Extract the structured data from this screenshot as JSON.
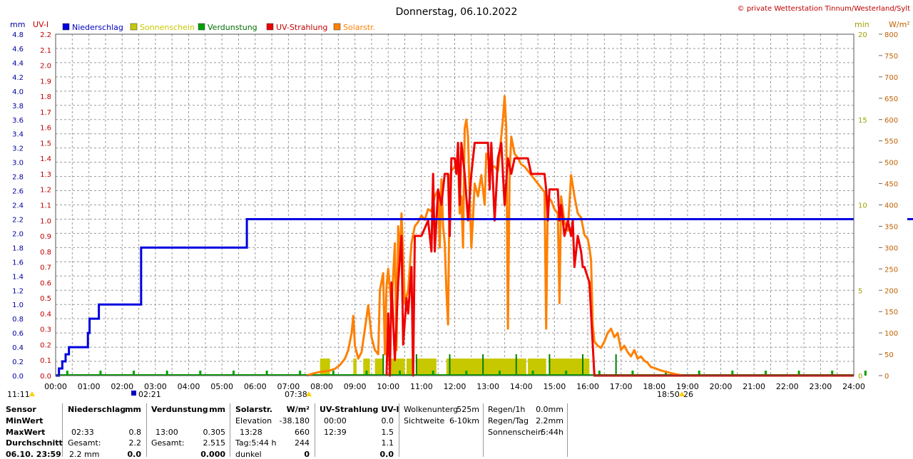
{
  "header": {
    "title": "Donnerstag, 06.10.2022",
    "copyright": "© private Wetterstation Tinnum/Westerland/Sylt"
  },
  "colors": {
    "precip": "#0000e0",
    "sunshine": "#c8c800",
    "sunshine_bar": "#c8c800",
    "evap": "#00a000",
    "uv": "#ee0000",
    "solar": "#ff8000",
    "grid": "#9a9a9a"
  },
  "chart_data": {
    "type": "line",
    "title": "Donnerstag, 06.10.2022",
    "x_range": [
      "00:00",
      "24:00"
    ],
    "x_ticks": [
      "00:00",
      "01:00",
      "02:00",
      "03:00",
      "04:00",
      "05:00",
      "06:00",
      "07:00",
      "08:00",
      "09:00",
      "10:00",
      "11:00",
      "12:00",
      "13:00",
      "14:00",
      "15:00",
      "16:00",
      "17:00",
      "18:00",
      "19:00",
      "20:00",
      "21:00",
      "22:00",
      "23:00",
      "24:00"
    ],
    "grid": true,
    "legend_position": "top",
    "axes": {
      "mm": {
        "label": "mm",
        "range": [
          0,
          4.8
        ],
        "ticks": [
          "0.0",
          "0.2",
          "0.4",
          "0.6",
          "0.8",
          "1.0",
          "1.2",
          "1.4",
          "1.6",
          "1.8",
          "2.0",
          "2.2",
          "2.4",
          "2.6",
          "2.8",
          "3.0",
          "3.2",
          "3.4",
          "3.6",
          "3.8",
          "4.0",
          "4.2",
          "4.4",
          "4.6",
          "4.8"
        ]
      },
      "uv": {
        "label": "UV-I",
        "range": [
          0,
          2.2
        ],
        "ticks": [
          "0.0",
          "0.1",
          "0.2",
          "0.3",
          "0.4",
          "0.5",
          "0.6",
          "0.7",
          "0.8",
          "0.9",
          "1.0",
          "1.1",
          "1.2",
          "1.3",
          "1.4",
          "1.5",
          "1.6",
          "1.7",
          "1.8",
          "1.9",
          "2.0",
          "2.1",
          "2.2"
        ]
      },
      "min": {
        "label": "min",
        "range": [
          0,
          20
        ],
        "ticks": [
          "0",
          "5",
          "10",
          "15",
          "20"
        ]
      },
      "wm2": {
        "label": "W/m²",
        "range": [
          0,
          800
        ],
        "ticks": [
          "0",
          "50",
          "100",
          "150",
          "200",
          "250",
          "300",
          "350",
          "400",
          "450",
          "500",
          "550",
          "600",
          "650",
          "700",
          "750",
          "800"
        ]
      }
    },
    "time_markers": [
      {
        "label": "11:11"
      },
      {
        "label": "02:21"
      },
      {
        "label": "07:38"
      },
      {
        "label": "18:50"
      },
      {
        "label": "26"
      }
    ],
    "legend": [
      "Niederschlag",
      "Sonnenschein",
      "Verdunstung",
      "UV-Strahlung",
      "Solarstr."
    ],
    "right_axis_marker_value_mm": 2.2,
    "series": [
      {
        "name": "Niederschlag",
        "unit": "mm",
        "axis": "mm",
        "step": true,
        "points": [
          [
            0,
            0
          ],
          [
            0.1,
            0.1
          ],
          [
            0.2,
            0.2
          ],
          [
            0.3,
            0.3
          ],
          [
            0.4,
            0.4
          ],
          [
            0.95,
            0.4
          ],
          [
            0.97,
            0.6
          ],
          [
            1.02,
            0.8
          ],
          [
            1.25,
            0.8
          ],
          [
            1.3,
            1.0
          ],
          [
            2.55,
            1.0
          ],
          [
            2.57,
            1.8
          ],
          [
            5.7,
            1.8
          ],
          [
            5.75,
            2.2
          ],
          [
            24,
            2.2
          ]
        ]
      },
      {
        "name": "UV-Strahlung",
        "unit": "UV-I",
        "axis": "uv",
        "points": [
          [
            9.95,
            0
          ],
          [
            10.0,
            0.4
          ],
          [
            10.05,
            0
          ],
          [
            10.1,
            0.6
          ],
          [
            10.2,
            0.1
          ],
          [
            10.3,
            0.6
          ],
          [
            10.4,
            0.9
          ],
          [
            10.45,
            0.2
          ],
          [
            10.55,
            0.5
          ],
          [
            10.6,
            0.4
          ],
          [
            10.7,
            0.7
          ],
          [
            10.75,
            0
          ],
          [
            10.8,
            0.9
          ],
          [
            11.0,
            0.9
          ],
          [
            11.2,
            1.0
          ],
          [
            11.3,
            0.8
          ],
          [
            11.35,
            1.3
          ],
          [
            11.4,
            0.8
          ],
          [
            11.5,
            1.2
          ],
          [
            11.6,
            1.1
          ],
          [
            11.7,
            1.3
          ],
          [
            11.8,
            1.3
          ],
          [
            11.85,
            0.9
          ],
          [
            11.9,
            1.4
          ],
          [
            12.0,
            1.4
          ],
          [
            12.05,
            1.3
          ],
          [
            12.1,
            1.5
          ],
          [
            12.15,
            1.1
          ],
          [
            12.2,
            1.5
          ],
          [
            12.3,
            1.3
          ],
          [
            12.4,
            1.0
          ],
          [
            12.5,
            1.3
          ],
          [
            12.6,
            1.5
          ],
          [
            13.0,
            1.5
          ],
          [
            13.05,
            1.2
          ],
          [
            13.1,
            1.5
          ],
          [
            13.2,
            1.0
          ],
          [
            13.3,
            1.4
          ],
          [
            13.4,
            1.5
          ],
          [
            13.5,
            1.1
          ],
          [
            13.6,
            1.4
          ],
          [
            13.7,
            1.3
          ],
          [
            13.8,
            1.4
          ],
          [
            13.9,
            1.4
          ],
          [
            14.2,
            1.4
          ],
          [
            14.3,
            1.3
          ],
          [
            14.7,
            1.3
          ],
          [
            14.75,
            1.2
          ],
          [
            14.8,
            1.0
          ],
          [
            14.85,
            1.2
          ],
          [
            15.1,
            1.2
          ],
          [
            15.15,
            1.0
          ],
          [
            15.2,
            1.1
          ],
          [
            15.3,
            0.9
          ],
          [
            15.4,
            1.0
          ],
          [
            15.5,
            0.9
          ],
          [
            15.55,
            1.0
          ],
          [
            15.6,
            0.7
          ],
          [
            15.7,
            0.9
          ],
          [
            15.8,
            0.8
          ],
          [
            15.85,
            0.7
          ],
          [
            15.9,
            0.7
          ],
          [
            16.05,
            0.6
          ],
          [
            16.2,
            0
          ],
          [
            24,
            0
          ]
        ]
      },
      {
        "name": "Solarstr.",
        "unit": "W/m²",
        "axis": "wm2",
        "points": [
          [
            7.55,
            0
          ],
          [
            7.7,
            4
          ],
          [
            7.9,
            8
          ],
          [
            8.1,
            10
          ],
          [
            8.25,
            12
          ],
          [
            8.4,
            16
          ],
          [
            8.55,
            25
          ],
          [
            8.7,
            40
          ],
          [
            8.8,
            60
          ],
          [
            8.9,
            100
          ],
          [
            8.95,
            140
          ],
          [
            9.0,
            70
          ],
          [
            9.1,
            40
          ],
          [
            9.2,
            55
          ],
          [
            9.3,
            110
          ],
          [
            9.4,
            165
          ],
          [
            9.5,
            90
          ],
          [
            9.6,
            60
          ],
          [
            9.7,
            50
          ],
          [
            9.75,
            200
          ],
          [
            9.85,
            240
          ],
          [
            9.9,
            50
          ],
          [
            9.95,
            210
          ],
          [
            10.0,
            250
          ],
          [
            10.1,
            160
          ],
          [
            10.2,
            310
          ],
          [
            10.25,
            60
          ],
          [
            10.3,
            350
          ],
          [
            10.35,
            270
          ],
          [
            10.4,
            380
          ],
          [
            10.5,
            170
          ],
          [
            10.6,
            200
          ],
          [
            10.7,
            310
          ],
          [
            10.8,
            350
          ],
          [
            10.9,
            360
          ],
          [
            11.0,
            375
          ],
          [
            11.1,
            365
          ],
          [
            11.2,
            390
          ],
          [
            11.3,
            385
          ],
          [
            11.4,
            420
          ],
          [
            11.5,
            435
          ],
          [
            11.55,
            300
          ],
          [
            11.6,
            460
          ],
          [
            11.65,
            350
          ],
          [
            11.7,
            310
          ],
          [
            11.75,
            200
          ],
          [
            11.8,
            120
          ],
          [
            11.85,
            460
          ],
          [
            11.9,
            480
          ],
          [
            12.0,
            490
          ],
          [
            12.1,
            510
          ],
          [
            12.15,
            380
          ],
          [
            12.2,
            420
          ],
          [
            12.25,
            300
          ],
          [
            12.3,
            580
          ],
          [
            12.35,
            600
          ],
          [
            12.4,
            560
          ],
          [
            12.45,
            420
          ],
          [
            12.5,
            300
          ],
          [
            12.55,
            370
          ],
          [
            12.6,
            450
          ],
          [
            12.7,
            420
          ],
          [
            12.8,
            470
          ],
          [
            12.9,
            400
          ],
          [
            12.95,
            520
          ],
          [
            13.0,
            510
          ],
          [
            13.1,
            490
          ],
          [
            13.2,
            490
          ],
          [
            13.3,
            480
          ],
          [
            13.4,
            560
          ],
          [
            13.45,
            600
          ],
          [
            13.5,
            655
          ],
          [
            13.55,
            580
          ],
          [
            13.6,
            110
          ],
          [
            13.65,
            470
          ],
          [
            13.7,
            560
          ],
          [
            13.8,
            520
          ],
          [
            13.9,
            510
          ],
          [
            14.0,
            495
          ],
          [
            14.1,
            490
          ],
          [
            14.2,
            480
          ],
          [
            14.3,
            470
          ],
          [
            14.4,
            460
          ],
          [
            14.5,
            450
          ],
          [
            14.6,
            440
          ],
          [
            14.7,
            430
          ],
          [
            14.75,
            110
          ],
          [
            14.8,
            420
          ],
          [
            14.9,
            410
          ],
          [
            15.0,
            390
          ],
          [
            15.1,
            380
          ],
          [
            15.15,
            170
          ],
          [
            15.2,
            420
          ],
          [
            15.3,
            360
          ],
          [
            15.4,
            340
          ],
          [
            15.5,
            470
          ],
          [
            15.6,
            420
          ],
          [
            15.7,
            380
          ],
          [
            15.8,
            370
          ],
          [
            15.85,
            350
          ],
          [
            15.9,
            330
          ],
          [
            16.0,
            320
          ],
          [
            16.05,
            300
          ],
          [
            16.1,
            270
          ],
          [
            16.15,
            120
          ],
          [
            16.2,
            80
          ],
          [
            16.3,
            70
          ],
          [
            16.4,
            65
          ],
          [
            16.5,
            80
          ],
          [
            16.6,
            100
          ],
          [
            16.7,
            110
          ],
          [
            16.8,
            90
          ],
          [
            16.9,
            100
          ],
          [
            17.0,
            60
          ],
          [
            17.1,
            70
          ],
          [
            17.2,
            55
          ],
          [
            17.3,
            45
          ],
          [
            17.4,
            60
          ],
          [
            17.5,
            40
          ],
          [
            17.6,
            45
          ],
          [
            17.7,
            35
          ],
          [
            17.8,
            30
          ],
          [
            17.9,
            20
          ],
          [
            18.0,
            18
          ],
          [
            18.2,
            12
          ],
          [
            18.4,
            8
          ],
          [
            18.6,
            4
          ],
          [
            18.8,
            1
          ],
          [
            18.85,
            0
          ],
          [
            24,
            0
          ]
        ]
      },
      {
        "name": "Sonnenschein",
        "unit": "min",
        "axis": "min",
        "bars_full_minute": [
          [
            7.95,
            8.25
          ],
          [
            8.95,
            9.05
          ],
          [
            9.25,
            9.45
          ],
          [
            9.6,
            9.85
          ],
          [
            10.05,
            10.5
          ],
          [
            10.55,
            10.75
          ],
          [
            10.85,
            11.45
          ],
          [
            11.75,
            14.15
          ],
          [
            14.2,
            14.75
          ],
          [
            14.85,
            16.05
          ]
        ]
      },
      {
        "name": "Verdunstung",
        "unit": "mm",
        "axis": "mm",
        "points": [
          [
            0,
            0
          ],
          [
            24,
            0
          ]
        ]
      }
    ]
  },
  "footer": {
    "sensor": {
      "label": "Sensor",
      "rows": [
        "MinWert",
        "MaxWert",
        "Durchschnitt",
        "06.10. 23:59"
      ]
    },
    "precip": {
      "header": "Niederschlag",
      "unit": "mm",
      "max_time": "02:33",
      "max_value": "0.8",
      "avg_label": "Gesamt:",
      "avg_value": "2.2",
      "total_label": "2.2 mm",
      "total_value": "0.0"
    },
    "evap": {
      "header": "Verdunstung",
      "unit": "mm",
      "max_time": "13:00",
      "max_value": "0.305",
      "avg_label": "Gesamt:",
      "avg_value": "2.515",
      "total_value": "0.000"
    },
    "solar": {
      "header": "Solarstr.",
      "unit": "W/m²",
      "min_label": "Elevation",
      "min_value": "-38.180",
      "max_time": "13:28",
      "max_value": "660",
      "avg_label": "Tag:5:44 h",
      "avg_value": "244",
      "total_label": "dunkel",
      "total_value": "0"
    },
    "uv": {
      "header": "UV-Strahlung UV-I",
      "min_time": "00:00",
      "min_value": "0.0",
      "max_time": "12:39",
      "max_value": "1.5",
      "avg_value": "1.1",
      "total_value": "0.0"
    },
    "cloud": {
      "r1_label": "Wolkenunterg",
      "r1_value": "525m",
      "r2_label": "Sichtweite",
      "r2_value": "6-10km"
    },
    "rain": {
      "r1_label": "Regen/1h",
      "r1_value": "0.0mm",
      "r2_label": "Regen/Tag",
      "r2_value": "2.2mm",
      "r3_label": "Sonnenschein",
      "r3_value": "5:44h"
    }
  }
}
